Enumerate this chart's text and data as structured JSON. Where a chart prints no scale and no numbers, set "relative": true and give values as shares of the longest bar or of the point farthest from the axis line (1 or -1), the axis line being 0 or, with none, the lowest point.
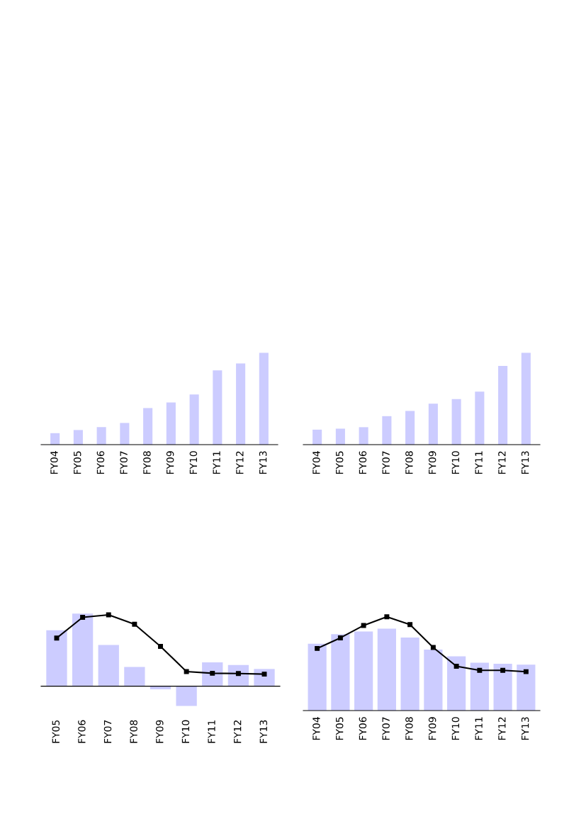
{
  "chart_data": [
    {
      "type": "bar",
      "relative": true,
      "categories": [
        "FY04",
        "FY05",
        "FY06",
        "FY07",
        "FY08",
        "FY09",
        "FY10",
        "FY11",
        "FY12",
        "FY13"
      ],
      "series": [
        {
          "color": "#ccccff",
          "values": [
            0.125,
            0.159,
            0.191,
            0.236,
            0.398,
            0.459,
            0.546,
            0.809,
            0.883,
            1
          ]
        }
      ]
    },
    {
      "type": "bar",
      "relative": true,
      "categories": [
        "FY04",
        "FY05",
        "FY06",
        "FY07",
        "FY08",
        "FY09",
        "FY10",
        "FY11",
        "FY12",
        "FY13"
      ],
      "series": [
        {
          "color": "#ccccff",
          "values": [
            0.163,
            0.174,
            0.19,
            0.31,
            0.367,
            0.446,
            0.495,
            0.576,
            0.856,
            1
          ]
        }
      ]
    },
    {
      "type": "bar",
      "relative": true,
      "marker": "square",
      "categories": [
        "FY05",
        "FY06",
        "FY07",
        "FY08",
        "FY09",
        "FY10",
        "FY11",
        "FY12",
        "FY13"
      ],
      "series": [
        {
          "color": "#ccccff",
          "values": [
            0.771,
            1,
            0.569,
            0.265,
            -0.043,
            -0.273,
            0.328,
            0.292,
            0.237
          ]
        },
        {
          "type": "line",
          "color": "#000000",
          "values": [
            0.664,
            0.949,
            0.984,
            0.854,
            0.549,
            0.202,
            0.178,
            0.174,
            0.166
          ]
        }
      ]
    },
    {
      "type": "bar",
      "relative": true,
      "marker": "square",
      "categories": [
        "FY04",
        "FY05",
        "FY06",
        "FY07",
        "FY08",
        "FY09",
        "FY10",
        "FY11",
        "FY12",
        "FY13"
      ],
      "series": [
        {
          "color": "#ccccff",
          "values": [
            0.714,
            0.816,
            0.844,
            0.874,
            0.779,
            0.65,
            0.578,
            0.51,
            0.5,
            0.49
          ]
        },
        {
          "type": "line",
          "color": "#000000",
          "values": [
            0.663,
            0.776,
            0.908,
            1,
            0.918,
            0.673,
            0.473,
            0.429,
            0.429,
            0.415
          ]
        }
      ]
    }
  ]
}
